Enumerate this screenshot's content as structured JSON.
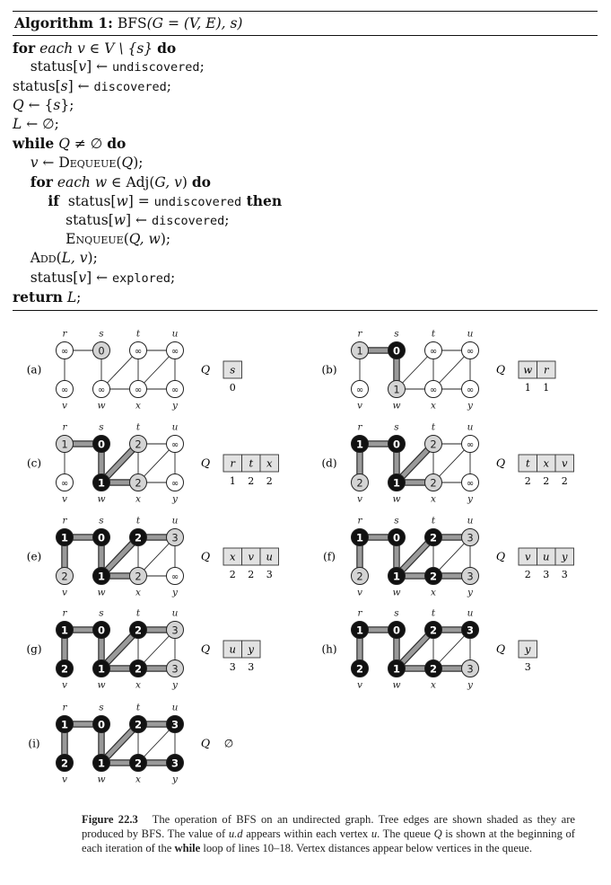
{
  "algorithm": {
    "label": "Algorithm 1:",
    "name": "BFS",
    "signature": "(G = (V, E), s)",
    "lines": [
      [
        {
          "t": "for",
          "c": "kw"
        },
        {
          "t": " each ",
          "c": "it"
        },
        {
          "t": "v ∈ V \\ {s} ",
          "c": "it"
        },
        {
          "t": "do",
          "c": "kw"
        }
      ],
      [
        {
          "t": "    status["
        },
        {
          "t": "v",
          "c": "it"
        },
        {
          "t": "] ← "
        },
        {
          "t": "undiscovered",
          "c": "mono"
        },
        {
          "t": ";"
        }
      ],
      [
        {
          "t": "status["
        },
        {
          "t": "s",
          "c": "it"
        },
        {
          "t": "] ← "
        },
        {
          "t": "discovered",
          "c": "mono"
        },
        {
          "t": ";"
        }
      ],
      [
        {
          "t": "Q",
          "c": "it"
        },
        {
          "t": " ← {"
        },
        {
          "t": "s",
          "c": "it"
        },
        {
          "t": "};"
        }
      ],
      [
        {
          "t": "L",
          "c": "it"
        },
        {
          "t": " ← ∅;"
        }
      ],
      [
        {
          "t": "while",
          "c": "kw"
        },
        {
          "t": " "
        },
        {
          "t": "Q",
          "c": "it"
        },
        {
          "t": " ≠ ∅ "
        },
        {
          "t": "do",
          "c": "kw"
        }
      ],
      [
        {
          "t": "    "
        },
        {
          "t": "v",
          "c": "it"
        },
        {
          "t": " ← "
        },
        {
          "t": "Dequeue",
          "c": "sc"
        },
        {
          "t": "("
        },
        {
          "t": "Q",
          "c": "it"
        },
        {
          "t": ");"
        }
      ],
      [
        {
          "t": "    "
        },
        {
          "t": "for",
          "c": "kw"
        },
        {
          "t": " each w ∈ ",
          "c": "it"
        },
        {
          "t": "Adj("
        },
        {
          "t": "G, v",
          "c": "it"
        },
        {
          "t": ") "
        },
        {
          "t": "do",
          "c": "kw"
        }
      ],
      [
        {
          "t": "        "
        },
        {
          "t": "if",
          "c": "kw"
        },
        {
          "t": "  status["
        },
        {
          "t": "w",
          "c": "it"
        },
        {
          "t": "] = "
        },
        {
          "t": "undiscovered",
          "c": "mono"
        },
        {
          "t": " then",
          "c": "kw"
        }
      ],
      [
        {
          "t": "            status["
        },
        {
          "t": "w",
          "c": "it"
        },
        {
          "t": "] ← "
        },
        {
          "t": "discovered",
          "c": "mono"
        },
        {
          "t": ";"
        }
      ],
      [
        {
          "t": "            "
        },
        {
          "t": "Enqueue",
          "c": "sc"
        },
        {
          "t": "("
        },
        {
          "t": "Q, w",
          "c": "it"
        },
        {
          "t": ");"
        }
      ],
      [
        {
          "t": "    "
        },
        {
          "t": "Add",
          "c": "sc"
        },
        {
          "t": "("
        },
        {
          "t": "L, v",
          "c": "it"
        },
        {
          "t": ");"
        }
      ],
      [
        {
          "t": "    status["
        },
        {
          "t": "v",
          "c": "it"
        },
        {
          "t": "] ← "
        },
        {
          "t": "explored",
          "c": "mono"
        },
        {
          "t": ";"
        }
      ],
      [
        {
          "t": "return",
          "c": "kw"
        },
        {
          "t": " "
        },
        {
          "t": "L",
          "c": "it"
        },
        {
          "t": ";"
        }
      ]
    ]
  },
  "graph": {
    "vertices": [
      "r",
      "s",
      "t",
      "u",
      "v",
      "w",
      "x",
      "y"
    ],
    "edges": [
      [
        "r",
        "s"
      ],
      [
        "r",
        "v"
      ],
      [
        "s",
        "w"
      ],
      [
        "w",
        "t"
      ],
      [
        "w",
        "x"
      ],
      [
        "t",
        "x"
      ],
      [
        "t",
        "u"
      ],
      [
        "x",
        "u"
      ],
      [
        "x",
        "y"
      ],
      [
        "u",
        "y"
      ]
    ],
    "infinity_symbol": "∞"
  },
  "panels": [
    {
      "label": "(a)",
      "d": {
        "r": "∞",
        "s": "0",
        "t": "∞",
        "u": "∞",
        "v": "∞",
        "w": "∞",
        "x": "∞",
        "y": "∞"
      },
      "state": {
        "s": "gray"
      },
      "tree": [],
      "queue": [
        "s"
      ],
      "queue_d": [
        "0"
      ]
    },
    {
      "label": "(b)",
      "d": {
        "r": "1",
        "s": "0",
        "t": "∞",
        "u": "∞",
        "v": "∞",
        "w": "1",
        "x": "∞",
        "y": "∞"
      },
      "state": {
        "s": "black",
        "r": "gray",
        "w": "gray"
      },
      "tree": [
        [
          "r",
          "s"
        ],
        [
          "s",
          "w"
        ]
      ],
      "queue": [
        "w",
        "r"
      ],
      "queue_d": [
        "1",
        "1"
      ]
    },
    {
      "label": "(c)",
      "d": {
        "r": "1",
        "s": "0",
        "t": "2",
        "u": "∞",
        "v": "∞",
        "w": "1",
        "x": "2",
        "y": "∞"
      },
      "state": {
        "s": "black",
        "w": "black",
        "r": "gray",
        "t": "gray",
        "x": "gray"
      },
      "tree": [
        [
          "r",
          "s"
        ],
        [
          "s",
          "w"
        ],
        [
          "w",
          "t"
        ],
        [
          "w",
          "x"
        ]
      ],
      "queue": [
        "r",
        "t",
        "x"
      ],
      "queue_d": [
        "1",
        "2",
        "2"
      ]
    },
    {
      "label": "(d)",
      "d": {
        "r": "1",
        "s": "0",
        "t": "2",
        "u": "∞",
        "v": "2",
        "w": "1",
        "x": "2",
        "y": "∞"
      },
      "state": {
        "r": "black",
        "s": "black",
        "w": "black",
        "t": "gray",
        "x": "gray",
        "v": "gray"
      },
      "tree": [
        [
          "r",
          "s"
        ],
        [
          "s",
          "w"
        ],
        [
          "w",
          "t"
        ],
        [
          "w",
          "x"
        ],
        [
          "r",
          "v"
        ]
      ],
      "queue": [
        "t",
        "x",
        "v"
      ],
      "queue_d": [
        "2",
        "2",
        "2"
      ]
    },
    {
      "label": "(e)",
      "d": {
        "r": "1",
        "s": "0",
        "t": "2",
        "u": "3",
        "v": "2",
        "w": "1",
        "x": "2",
        "y": "∞"
      },
      "state": {
        "r": "black",
        "s": "black",
        "w": "black",
        "t": "black",
        "x": "gray",
        "v": "gray",
        "u": "gray"
      },
      "tree": [
        [
          "r",
          "s"
        ],
        [
          "s",
          "w"
        ],
        [
          "w",
          "t"
        ],
        [
          "w",
          "x"
        ],
        [
          "r",
          "v"
        ],
        [
          "t",
          "u"
        ]
      ],
      "queue": [
        "x",
        "v",
        "u"
      ],
      "queue_d": [
        "2",
        "2",
        "3"
      ]
    },
    {
      "label": "(f)",
      "d": {
        "r": "1",
        "s": "0",
        "t": "2",
        "u": "3",
        "v": "2",
        "w": "1",
        "x": "2",
        "y": "3"
      },
      "state": {
        "r": "black",
        "s": "black",
        "w": "black",
        "t": "black",
        "x": "black",
        "v": "gray",
        "u": "gray",
        "y": "gray"
      },
      "tree": [
        [
          "r",
          "s"
        ],
        [
          "s",
          "w"
        ],
        [
          "w",
          "t"
        ],
        [
          "w",
          "x"
        ],
        [
          "r",
          "v"
        ],
        [
          "t",
          "u"
        ],
        [
          "x",
          "y"
        ]
      ],
      "queue": [
        "v",
        "u",
        "y"
      ],
      "queue_d": [
        "2",
        "3",
        "3"
      ]
    },
    {
      "label": "(g)",
      "d": {
        "r": "1",
        "s": "0",
        "t": "2",
        "u": "3",
        "v": "2",
        "w": "1",
        "x": "2",
        "y": "3"
      },
      "state": {
        "r": "black",
        "s": "black",
        "w": "black",
        "t": "black",
        "x": "black",
        "v": "black",
        "u": "gray",
        "y": "gray"
      },
      "tree": [
        [
          "r",
          "s"
        ],
        [
          "s",
          "w"
        ],
        [
          "w",
          "t"
        ],
        [
          "w",
          "x"
        ],
        [
          "r",
          "v"
        ],
        [
          "t",
          "u"
        ],
        [
          "x",
          "y"
        ]
      ],
      "queue": [
        "u",
        "y"
      ],
      "queue_d": [
        "3",
        "3"
      ]
    },
    {
      "label": "(h)",
      "d": {
        "r": "1",
        "s": "0",
        "t": "2",
        "u": "3",
        "v": "2",
        "w": "1",
        "x": "2",
        "y": "3"
      },
      "state": {
        "r": "black",
        "s": "black",
        "w": "black",
        "t": "black",
        "x": "black",
        "v": "black",
        "u": "black",
        "y": "gray"
      },
      "tree": [
        [
          "r",
          "s"
        ],
        [
          "s",
          "w"
        ],
        [
          "w",
          "t"
        ],
        [
          "w",
          "x"
        ],
        [
          "r",
          "v"
        ],
        [
          "t",
          "u"
        ],
        [
          "x",
          "y"
        ]
      ],
      "queue": [
        "y"
      ],
      "queue_d": [
        "3"
      ]
    },
    {
      "label": "(i)",
      "d": {
        "r": "1",
        "s": "0",
        "t": "2",
        "u": "3",
        "v": "2",
        "w": "1",
        "x": "2",
        "y": "3"
      },
      "state": {
        "r": "black",
        "s": "black",
        "w": "black",
        "t": "black",
        "x": "black",
        "v": "black",
        "u": "black",
        "y": "black"
      },
      "tree": [
        [
          "r",
          "s"
        ],
        [
          "s",
          "w"
        ],
        [
          "w",
          "t"
        ],
        [
          "w",
          "x"
        ],
        [
          "r",
          "v"
        ],
        [
          "t",
          "u"
        ],
        [
          "x",
          "y"
        ]
      ],
      "queue": [],
      "queue_d": [],
      "queue_empty": "∅"
    }
  ],
  "queue_label": "Q",
  "colors": {
    "white": "#ffffff",
    "gray": "#d4d4d4",
    "black": "#111111",
    "tree_edge": "#9a9a9a"
  },
  "caption": {
    "fig_label": "Figure 22.3",
    "text_1": "The operation of BFS on an undirected graph. Tree edges are shown shaded as they are produced by BFS. The value of ",
    "ud": "u.d",
    "text_2": " appears within each vertex ",
    "u": "u",
    "text_3": ". The queue ",
    "Q": "Q",
    "text_4": " is shown at the beginning of each iteration of the ",
    "while": "while",
    "text_5": " loop of lines 10–18. Vertex distances appear below vertices in the queue."
  }
}
